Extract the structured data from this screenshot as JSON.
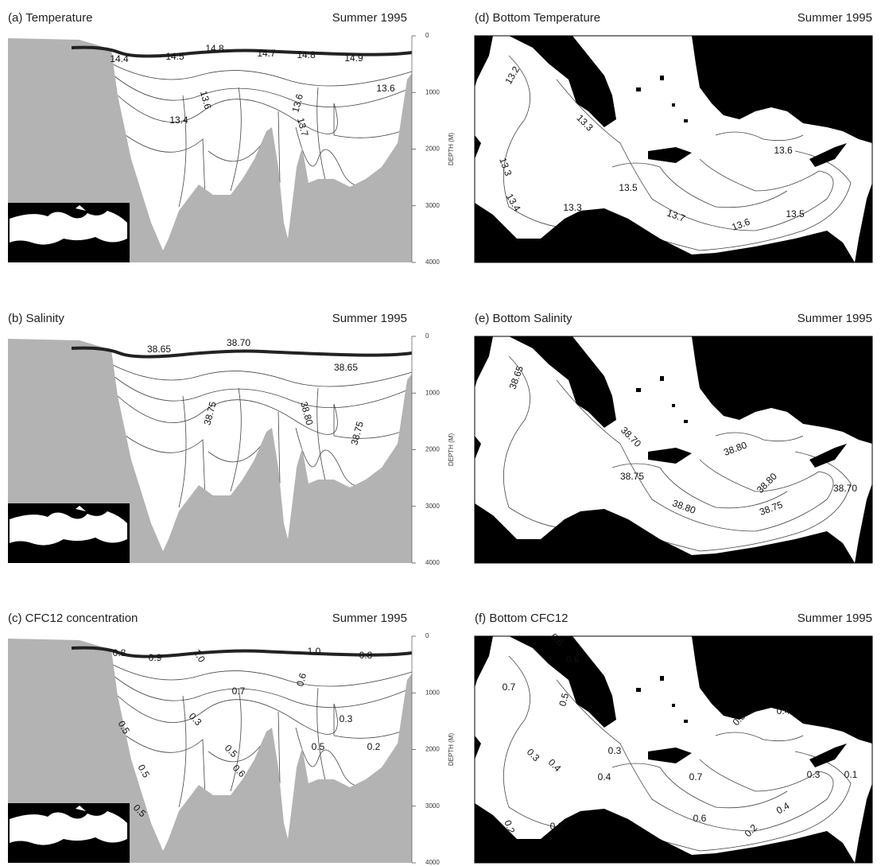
{
  "panels": [
    {
      "title": "(a) Temperature",
      "period": "Summer 1995",
      "depth_axis": {
        "label": "DEPTH (M)",
        "ylim": [
          0,
          4000
        ],
        "yticks": [
          0,
          1000,
          2000,
          3000,
          4000
        ]
      },
      "contour_labels": [
        "14.4",
        "14.5",
        "14.8",
        "14.7",
        "14.8",
        "14.9",
        "13.6",
        "13.6",
        "13.4",
        "13.6",
        "13.7"
      ]
    },
    {
      "title": "(b) Salinity",
      "period": "Summer 1995",
      "depth_axis": {
        "label": "DEPTH (M)",
        "ylim": [
          0,
          4000
        ],
        "yticks": [
          0,
          1000,
          2000,
          3000,
          4000
        ]
      },
      "contour_labels": [
        "38.65",
        "38.70",
        "38.65",
        "38.75",
        "38.80",
        "38.75"
      ]
    },
    {
      "title": "(c) CFC12 concentration",
      "period": "Summer 1995",
      "depth_axis": {
        "label": "DEPTH (M)",
        "ylim": [
          0,
          4000
        ],
        "yticks": [
          0,
          1000,
          2000,
          3000,
          4000
        ]
      },
      "contour_labels": [
        "0.8",
        "0.9",
        "1.0",
        "0.7",
        "0.3",
        "0.5",
        "0.5",
        "0.5",
        "0.6",
        "0.5",
        "0.6",
        "0.3",
        "0.5",
        "0.2",
        "1.0",
        "0.8"
      ]
    },
    {
      "title": "(d) Bottom Temperature",
      "period": "Summer 1995",
      "contour_labels": [
        "13.2",
        "13.3",
        "13.6",
        "13.3",
        "13.5",
        "13.4",
        "13.3",
        "13.7",
        "13.6",
        "13.5"
      ]
    },
    {
      "title": "(e) Bottom Salinity",
      "period": "Summer 1995",
      "contour_labels": [
        "38.65",
        "38.70",
        "38.80",
        "38.75",
        "38.80",
        "38.70",
        "38.80",
        "38.75"
      ]
    },
    {
      "title": "(f) Bottom CFC12",
      "period": "Summer 1995",
      "contour_labels": [
        "0.6",
        "0.6",
        "0.7",
        "0.5",
        "0.5",
        "0.4",
        "0.3",
        "0.3",
        "0.4",
        "0.4",
        "0.7",
        "0.3",
        "0.1",
        "0.2",
        "0.2",
        "0.6",
        "0.4",
        "0.2"
      ]
    }
  ]
}
